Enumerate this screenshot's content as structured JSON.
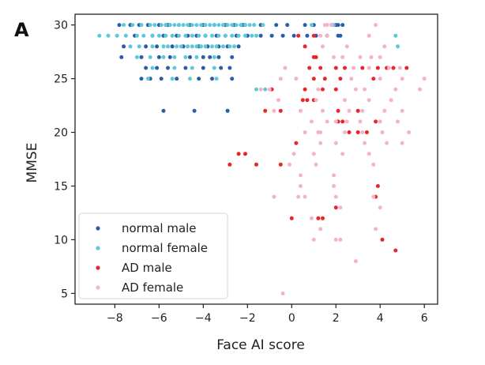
{
  "panel_label": "A",
  "chart_data": {
    "type": "scatter",
    "title": "",
    "xlabel": "Face AI score",
    "ylabel": "MMSE",
    "xlim": [
      -9.8,
      6.6
    ],
    "ylim": [
      4.0,
      31.0
    ],
    "xticks": [
      -8,
      -6,
      -4,
      -2,
      0,
      2,
      4,
      6
    ],
    "xtick_labels": [
      "−8",
      "−6",
      "−4",
      "−2",
      "0",
      "2",
      "4",
      "6"
    ],
    "yticks": [
      5,
      10,
      15,
      20,
      25,
      30
    ],
    "ytick_labels": [
      "5",
      "10",
      "15",
      "20",
      "25",
      "30"
    ],
    "grid": false,
    "legend_position": "lower-left",
    "series": [
      {
        "name": "normal male",
        "color": "#2a5ca8",
        "points": [
          [
            -7.8,
            30
          ],
          [
            -7.3,
            30
          ],
          [
            -6.9,
            30
          ],
          [
            -6.5,
            30
          ],
          [
            -6.0,
            30
          ],
          [
            -5.6,
            30
          ],
          [
            -5.1,
            30
          ],
          [
            -4.6,
            30
          ],
          [
            -4.0,
            30
          ],
          [
            -3.5,
            30
          ],
          [
            -3.0,
            30
          ],
          [
            -2.6,
            30
          ],
          [
            -2.2,
            30
          ],
          [
            -1.4,
            30
          ],
          [
            -0.7,
            30
          ],
          [
            -0.2,
            30
          ],
          [
            0.6,
            30
          ],
          [
            1.0,
            30
          ],
          [
            1.8,
            30
          ],
          [
            2.0,
            30
          ],
          [
            2.1,
            30
          ],
          [
            2.3,
            30
          ],
          [
            -7.1,
            29
          ],
          [
            -6.3,
            29
          ],
          [
            -5.8,
            29
          ],
          [
            -5.2,
            29
          ],
          [
            -4.7,
            29
          ],
          [
            -4.3,
            29
          ],
          [
            -3.9,
            29
          ],
          [
            -3.4,
            29
          ],
          [
            -3.0,
            29
          ],
          [
            -2.5,
            29
          ],
          [
            -2.0,
            29
          ],
          [
            -1.4,
            29
          ],
          [
            -0.9,
            29
          ],
          [
            -0.4,
            29
          ],
          [
            0.1,
            29
          ],
          [
            0.7,
            29
          ],
          [
            1.1,
            29
          ],
          [
            1.6,
            29
          ],
          [
            2.1,
            29
          ],
          [
            2.2,
            29
          ],
          [
            -7.6,
            28
          ],
          [
            -6.6,
            28
          ],
          [
            -6.1,
            28
          ],
          [
            -5.4,
            28
          ],
          [
            -4.9,
            28
          ],
          [
            -4.2,
            28
          ],
          [
            -3.8,
            28
          ],
          [
            -3.3,
            28
          ],
          [
            -2.9,
            28
          ],
          [
            -2.4,
            28
          ],
          [
            -7.7,
            27
          ],
          [
            -6.8,
            27
          ],
          [
            -6.0,
            27
          ],
          [
            -5.5,
            27
          ],
          [
            -4.6,
            27
          ],
          [
            -4.0,
            27
          ],
          [
            -3.7,
            27
          ],
          [
            -3.3,
            27
          ],
          [
            -2.7,
            27
          ],
          [
            -6.6,
            26
          ],
          [
            -6.1,
            26
          ],
          [
            -5.6,
            26
          ],
          [
            -4.8,
            26
          ],
          [
            -4.0,
            26
          ],
          [
            -3.2,
            26
          ],
          [
            -2.8,
            26
          ],
          [
            -6.8,
            25
          ],
          [
            -6.4,
            25
          ],
          [
            -5.9,
            25
          ],
          [
            -5.2,
            25
          ],
          [
            -4.2,
            25
          ],
          [
            -3.6,
            25
          ],
          [
            -2.7,
            25
          ],
          [
            -5.8,
            22
          ],
          [
            -4.4,
            22
          ],
          [
            -2.9,
            22
          ]
        ]
      },
      {
        "name": "normal female",
        "color": "#5cc9d6",
        "points": [
          [
            -7.6,
            30
          ],
          [
            -7.2,
            30
          ],
          [
            -6.8,
            30
          ],
          [
            -6.4,
            30
          ],
          [
            -6.2,
            30
          ],
          [
            -5.9,
            30
          ],
          [
            -5.7,
            30
          ],
          [
            -5.5,
            30
          ],
          [
            -5.3,
            30
          ],
          [
            -5.1,
            30
          ],
          [
            -4.9,
            30
          ],
          [
            -4.7,
            30
          ],
          [
            -4.5,
            30
          ],
          [
            -4.3,
            30
          ],
          [
            -4.1,
            30
          ],
          [
            -3.9,
            30
          ],
          [
            -3.7,
            30
          ],
          [
            -3.5,
            30
          ],
          [
            -3.3,
            30
          ],
          [
            -3.1,
            30
          ],
          [
            -2.9,
            30
          ],
          [
            -2.7,
            30
          ],
          [
            -2.5,
            30
          ],
          [
            -2.3,
            30
          ],
          [
            -2.1,
            30
          ],
          [
            -1.9,
            30
          ],
          [
            -1.7,
            30
          ],
          [
            -1.3,
            30
          ],
          [
            0.9,
            30
          ],
          [
            1.9,
            30
          ],
          [
            -8.7,
            29
          ],
          [
            -8.3,
            29
          ],
          [
            -7.9,
            29
          ],
          [
            -7.5,
            29
          ],
          [
            -7.0,
            29
          ],
          [
            -6.7,
            29
          ],
          [
            -6.3,
            29
          ],
          [
            -6.0,
            29
          ],
          [
            -5.7,
            29
          ],
          [
            -5.4,
            29
          ],
          [
            -5.1,
            29
          ],
          [
            -4.8,
            29
          ],
          [
            -4.5,
            29
          ],
          [
            -4.2,
            29
          ],
          [
            -3.9,
            29
          ],
          [
            -3.6,
            29
          ],
          [
            -3.3,
            29
          ],
          [
            -3.0,
            29
          ],
          [
            -2.7,
            29
          ],
          [
            -2.4,
            29
          ],
          [
            -2.1,
            29
          ],
          [
            -1.8,
            29
          ],
          [
            -1.6,
            29
          ],
          [
            4.7,
            29
          ],
          [
            -7.3,
            28
          ],
          [
            -6.9,
            28
          ],
          [
            -6.3,
            28
          ],
          [
            -5.8,
            28
          ],
          [
            -5.6,
            28
          ],
          [
            -5.2,
            28
          ],
          [
            -5.0,
            28
          ],
          [
            -4.7,
            28
          ],
          [
            -4.5,
            28
          ],
          [
            -4.3,
            28
          ],
          [
            -4.1,
            28
          ],
          [
            -3.9,
            28
          ],
          [
            -3.6,
            28
          ],
          [
            -3.4,
            28
          ],
          [
            -3.1,
            28
          ],
          [
            -2.8,
            28
          ],
          [
            -2.6,
            28
          ],
          [
            4.8,
            28
          ],
          [
            -7.0,
            27
          ],
          [
            -6.4,
            27
          ],
          [
            -5.8,
            27
          ],
          [
            -5.3,
            27
          ],
          [
            -4.8,
            27
          ],
          [
            -4.3,
            27
          ],
          [
            -3.5,
            27
          ],
          [
            -6.3,
            26
          ],
          [
            -5.3,
            26
          ],
          [
            -4.5,
            26
          ],
          [
            -3.5,
            26
          ],
          [
            -6.5,
            25
          ],
          [
            -5.4,
            25
          ],
          [
            -4.6,
            25
          ],
          [
            -3.4,
            25
          ],
          [
            -1.6,
            24
          ],
          [
            -1.2,
            24
          ]
        ]
      },
      {
        "name": "AD male",
        "color": "#e8262a",
        "points": [
          [
            0.3,
            29
          ],
          [
            0.6,
            28
          ],
          [
            1.0,
            29
          ],
          [
            1.0,
            27
          ],
          [
            1.1,
            27
          ],
          [
            0.8,
            26
          ],
          [
            1.3,
            26
          ],
          [
            2.0,
            26
          ],
          [
            2.4,
            26
          ],
          [
            3.2,
            26
          ],
          [
            3.9,
            26
          ],
          [
            4.3,
            26
          ],
          [
            4.6,
            26
          ],
          [
            5.2,
            26
          ],
          [
            1.0,
            25
          ],
          [
            1.5,
            25
          ],
          [
            2.2,
            25
          ],
          [
            3.7,
            25
          ],
          [
            -0.9,
            24
          ],
          [
            0.6,
            24
          ],
          [
            1.4,
            24
          ],
          [
            2.0,
            24
          ],
          [
            0.5,
            23
          ],
          [
            0.7,
            23
          ],
          [
            1.0,
            23
          ],
          [
            -1.2,
            22
          ],
          [
            -0.5,
            22
          ],
          [
            2.1,
            22
          ],
          [
            3.0,
            22
          ],
          [
            2.1,
            21
          ],
          [
            2.3,
            21
          ],
          [
            3.8,
            21
          ],
          [
            2.6,
            20
          ],
          [
            3.0,
            20
          ],
          [
            3.4,
            20
          ],
          [
            0.2,
            19
          ],
          [
            -2.4,
            18
          ],
          [
            -2.1,
            18
          ],
          [
            -2.8,
            17
          ],
          [
            -1.6,
            17
          ],
          [
            -0.5,
            17
          ],
          [
            3.9,
            15
          ],
          [
            3.8,
            14
          ],
          [
            2.0,
            13
          ],
          [
            0.0,
            12
          ],
          [
            1.2,
            12
          ],
          [
            1.4,
            12
          ],
          [
            4.1,
            10
          ],
          [
            4.7,
            9
          ]
        ]
      },
      {
        "name": "AD female",
        "color": "#f7b3c5",
        "points": [
          [
            1.5,
            30
          ],
          [
            1.6,
            30
          ],
          [
            1.8,
            30
          ],
          [
            3.8,
            30
          ],
          [
            1.3,
            29
          ],
          [
            1.6,
            29
          ],
          [
            3.5,
            29
          ],
          [
            1.4,
            28
          ],
          [
            2.5,
            28
          ],
          [
            4.2,
            28
          ],
          [
            1.9,
            27
          ],
          [
            2.3,
            27
          ],
          [
            3.1,
            27
          ],
          [
            3.6,
            27
          ],
          [
            4.0,
            27
          ],
          [
            -0.3,
            26
          ],
          [
            2.8,
            26
          ],
          [
            3.5,
            26
          ],
          [
            4.4,
            26
          ],
          [
            4.9,
            26
          ],
          [
            -0.5,
            25
          ],
          [
            0.2,
            25
          ],
          [
            2.7,
            25
          ],
          [
            4.0,
            25
          ],
          [
            5.0,
            25
          ],
          [
            6.0,
            25
          ],
          [
            -1.4,
            24
          ],
          [
            -1.0,
            24
          ],
          [
            1.2,
            24
          ],
          [
            2.9,
            24
          ],
          [
            3.3,
            24
          ],
          [
            4.7,
            24
          ],
          [
            5.8,
            24
          ],
          [
            -0.6,
            23
          ],
          [
            1.1,
            23
          ],
          [
            2.4,
            23
          ],
          [
            3.5,
            23
          ],
          [
            4.5,
            23
          ],
          [
            -0.8,
            22
          ],
          [
            0.4,
            22
          ],
          [
            1.4,
            22
          ],
          [
            2.6,
            22
          ],
          [
            3.2,
            22
          ],
          [
            4.2,
            22
          ],
          [
            5.0,
            22
          ],
          [
            0.9,
            21
          ],
          [
            1.6,
            21
          ],
          [
            2.0,
            21
          ],
          [
            2.5,
            21
          ],
          [
            3.1,
            21
          ],
          [
            4.0,
            21
          ],
          [
            4.8,
            21
          ],
          [
            0.6,
            20
          ],
          [
            1.2,
            20
          ],
          [
            1.3,
            20
          ],
          [
            2.4,
            20
          ],
          [
            3.2,
            20
          ],
          [
            4.1,
            20
          ],
          [
            5.3,
            20
          ],
          [
            1.3,
            19
          ],
          [
            2.0,
            19
          ],
          [
            3.3,
            19
          ],
          [
            4.3,
            19
          ],
          [
            5.0,
            19
          ],
          [
            0.1,
            18
          ],
          [
            1.0,
            18
          ],
          [
            2.3,
            18
          ],
          [
            3.5,
            18
          ],
          [
            -0.1,
            17
          ],
          [
            1.1,
            17
          ],
          [
            3.7,
            17
          ],
          [
            0.4,
            16
          ],
          [
            1.9,
            16
          ],
          [
            0.4,
            15
          ],
          [
            1.9,
            15
          ],
          [
            -0.8,
            14
          ],
          [
            0.3,
            14
          ],
          [
            0.6,
            14
          ],
          [
            2.0,
            14
          ],
          [
            3.7,
            14
          ],
          [
            2.2,
            13
          ],
          [
            4.0,
            13
          ],
          [
            0.9,
            12
          ],
          [
            1.3,
            11
          ],
          [
            3.8,
            11
          ],
          [
            1.0,
            10
          ],
          [
            2.0,
            10
          ],
          [
            2.2,
            10
          ],
          [
            2.9,
            8
          ],
          [
            -0.4,
            5
          ]
        ]
      }
    ]
  }
}
